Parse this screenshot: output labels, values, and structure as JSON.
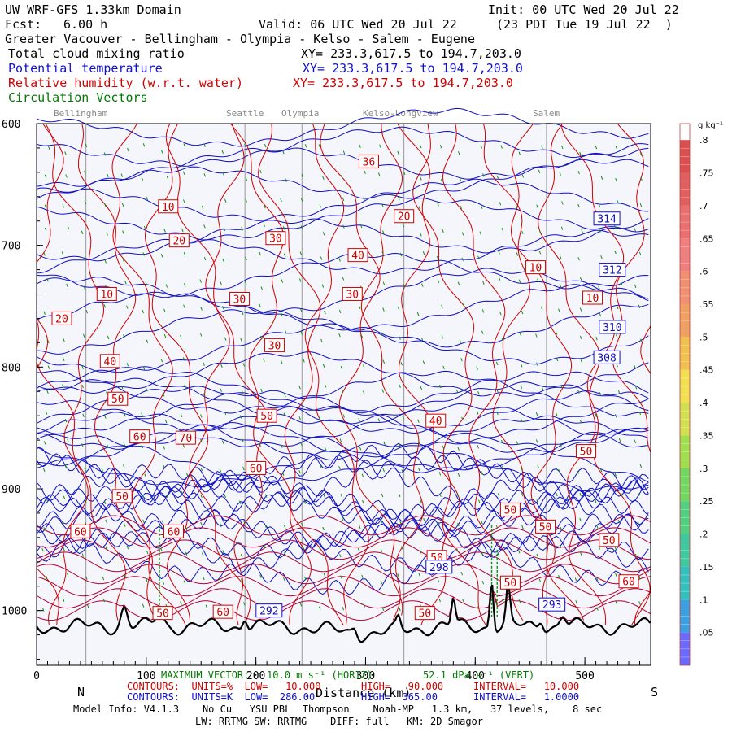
{
  "header": {
    "model": "UW WRF-GFS 1.33km Domain",
    "init": "Init: 00 UTC Wed 20 Jul 22",
    "fcst_label": "Fcst:",
    "fcst_value": "6.00 h",
    "valid": "Valid: 06 UTC Wed 20 Jul 22",
    "local": "(23 PDT Tue 19 Jul 22  )",
    "region": "Greater Vacouver - Bellingham - Olympia - Kelso - Salem - Eugene",
    "field1": "Total cloud mixing ratio",
    "field1_xy": "XY= 233.3,617.5 to 194.7,203.0",
    "field2": "Potential temperature",
    "field2_xy": "XY= 233.3,617.5 to 194.7,203.0",
    "field3": "Relative humidity (w.r.t. water)",
    "field3_xy": "XY= 233.3,617.5 to 194.7,203.0",
    "field4": "Circulation Vectors"
  },
  "cities": [
    "Bellingham",
    "Seattle",
    "Olympia",
    "Kelso-Longview",
    "Salem"
  ],
  "footer": {
    "n": "N",
    "s": "S",
    "distance": "Distance (km)",
    "vector": "MAXIMUM VECTOR:   10.0 m s⁻¹ (HORIZ)",
    "vector_vert": "52.1 dPa s⁻¹ (VERT)",
    "rh_contours": "CONTOURS:  UNITS=%  LOW=   10.000",
    "rh_high": "HIGH=   90.000",
    "rh_interval": "INTERVAL=   10.000",
    "th_contours": "CONTOURS:  UNITS=K  LOW=  286.00",
    "th_high": "HIGH=  365.00",
    "th_interval": "INTERVAL=   1.0000",
    "model_info": "Model Info: V4.1.3    No Cu   YSU PBL  Thompson    Noah-MP   1.3 km,   37 levels,    8 sec",
    "model_info2": "LW: RRTMG SW: RRTMG    DIFF: full   KM: 2D Smagor"
  },
  "colorbar": {
    "unit": "g kg⁻¹",
    "labels": [
      ".05",
      ".1",
      ".15",
      ".2",
      ".25",
      ".3",
      ".35",
      ".4",
      ".45",
      ".5",
      ".55",
      ".6",
      ".65",
      ".7",
      ".75",
      ".8"
    ],
    "colors": [
      "#6a6aff",
      "#3aa0e0",
      "#35c0c0",
      "#40c8a0",
      "#50d080",
      "#70d860",
      "#a0e050",
      "#d0e050",
      "#f0e050",
      "#f0c050",
      "#f0a060",
      "#f09070",
      "#f08080",
      "#e87070",
      "#e06060",
      "#d85050"
    ]
  },
  "chart_data": {
    "type": "contour",
    "x_ticks": [
      "0",
      "100",
      "200",
      "300",
      "400",
      "500"
    ],
    "y_ticks": [
      "600",
      "700",
      "800",
      "900",
      "1000"
    ],
    "x_range": [
      0,
      560
    ],
    "y_range": [
      600,
      1045
    ],
    "city_km": [
      45,
      190,
      242,
      335,
      465
    ],
    "potential_temperature_labels": [
      {
        "value": "314",
        "km": 520,
        "p": 678
      },
      {
        "value": "312",
        "km": 525,
        "p": 720
      },
      {
        "value": "310",
        "km": 525,
        "p": 767
      },
      {
        "value": "308",
        "km": 520,
        "p": 792
      },
      {
        "value": "298",
        "km": 367,
        "p": 964
      },
      {
        "value": "292",
        "km": 212,
        "p": 1000
      },
      {
        "value": "293",
        "km": 470,
        "p": 995
      }
    ],
    "relative_humidity_labels": [
      {
        "value": "10",
        "km": 120,
        "p": 668
      },
      {
        "value": "20",
        "km": 130,
        "p": 696
      },
      {
        "value": "30",
        "km": 218,
        "p": 694
      },
      {
        "value": "36",
        "km": 303,
        "p": 631
      },
      {
        "value": "20",
        "km": 335,
        "p": 676
      },
      {
        "value": "40",
        "km": 293,
        "p": 708
      },
      {
        "value": "10",
        "km": 455,
        "p": 718
      },
      {
        "value": "10",
        "km": 64,
        "p": 740
      },
      {
        "value": "30",
        "km": 185,
        "p": 744
      },
      {
        "value": "30",
        "km": 288,
        "p": 740
      },
      {
        "value": "10",
        "km": 507,
        "p": 743
      },
      {
        "value": "20",
        "km": 23,
        "p": 760
      },
      {
        "value": "30",
        "km": 217,
        "p": 782
      },
      {
        "value": "40",
        "km": 67,
        "p": 795
      },
      {
        "value": "50",
        "km": 74,
        "p": 826
      },
      {
        "value": "50",
        "km": 210,
        "p": 840
      },
      {
        "value": "40",
        "km": 364,
        "p": 844
      },
      {
        "value": "60",
        "km": 94,
        "p": 857
      },
      {
        "value": "70",
        "km": 136,
        "p": 858
      },
      {
        "value": "50",
        "km": 501,
        "p": 869
      },
      {
        "value": "60",
        "km": 200,
        "p": 883
      },
      {
        "value": "50",
        "km": 78,
        "p": 906
      },
      {
        "value": "50",
        "km": 432,
        "p": 917
      },
      {
        "value": "50",
        "km": 464,
        "p": 931
      },
      {
        "value": "60",
        "km": 40,
        "p": 935
      },
      {
        "value": "60",
        "km": 125,
        "p": 935
      },
      {
        "value": "50",
        "km": 522,
        "p": 942
      },
      {
        "value": "50",
        "km": 365,
        "p": 956
      },
      {
        "value": "50",
        "km": 432,
        "p": 977
      },
      {
        "value": "60",
        "km": 540,
        "p": 976
      },
      {
        "value": "50",
        "km": 115,
        "p": 1002
      },
      {
        "value": "60",
        "km": 170,
        "p": 1001
      },
      {
        "value": "50",
        "km": 354,
        "p": 1002
      }
    ]
  }
}
